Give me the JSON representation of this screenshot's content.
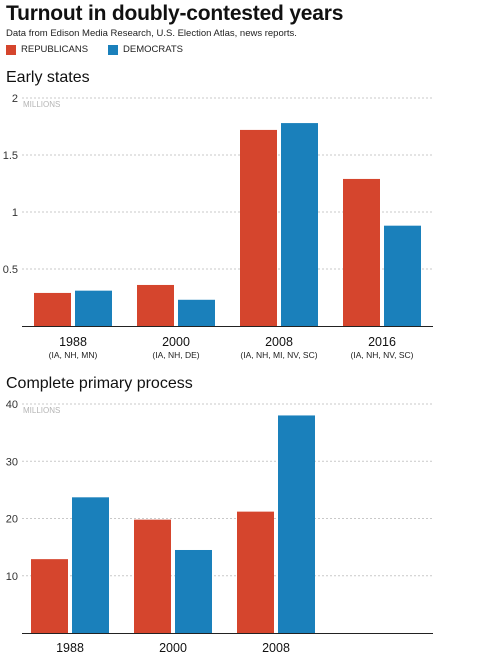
{
  "header": {
    "title": "Turnout in doubly-contested years",
    "subtitle": "Data from Edison Media Research, U.S. Election Atlas, news reports."
  },
  "legend": [
    {
      "label": "REPUBLICANS",
      "color": "#d5452d"
    },
    {
      "label": "DEMOCRATS",
      "color": "#1a80bb"
    }
  ],
  "chart_data": [
    {
      "type": "bar",
      "title": "Early states",
      "unit_label": "MILLIONS",
      "ylim": [
        0,
        2
      ],
      "yticks": [
        "0.5",
        "1",
        "1.5",
        "2"
      ],
      "ytick_values": [
        0.5,
        1,
        1.5,
        2
      ],
      "grid": true,
      "categories": [
        "1988",
        "2000",
        "2008",
        "2016"
      ],
      "category_sublabels": [
        "(IA, NH, MN)",
        "(IA, NH, DE)",
        "(IA, NH, MI, NV, SC)",
        "(IA, NH, NV, SC)"
      ],
      "series": [
        {
          "name": "REPUBLICANS",
          "color": "#d5452d",
          "values": [
            0.29,
            0.36,
            1.72,
            1.29
          ]
        },
        {
          "name": "DEMOCRATS",
          "color": "#1a80bb",
          "values": [
            0.31,
            0.23,
            1.78,
            0.88
          ]
        }
      ]
    },
    {
      "type": "bar",
      "title": "Complete primary process",
      "unit_label": "MILLIONS",
      "ylim": [
        0,
        40
      ],
      "yticks": [
        "10",
        "20",
        "30",
        "40"
      ],
      "ytick_values": [
        10,
        20,
        30,
        40
      ],
      "grid": true,
      "categories": [
        "1988",
        "2000",
        "2008",
        ""
      ],
      "category_sublabels": [
        "",
        "",
        "",
        ""
      ],
      "series": [
        {
          "name": "REPUBLICANS",
          "color": "#d5452d",
          "values": [
            12.9,
            19.8,
            21.2,
            null
          ]
        },
        {
          "name": "DEMOCRATS",
          "color": "#1a80bb",
          "values": [
            23.7,
            14.5,
            38.0,
            null
          ]
        }
      ]
    }
  ]
}
